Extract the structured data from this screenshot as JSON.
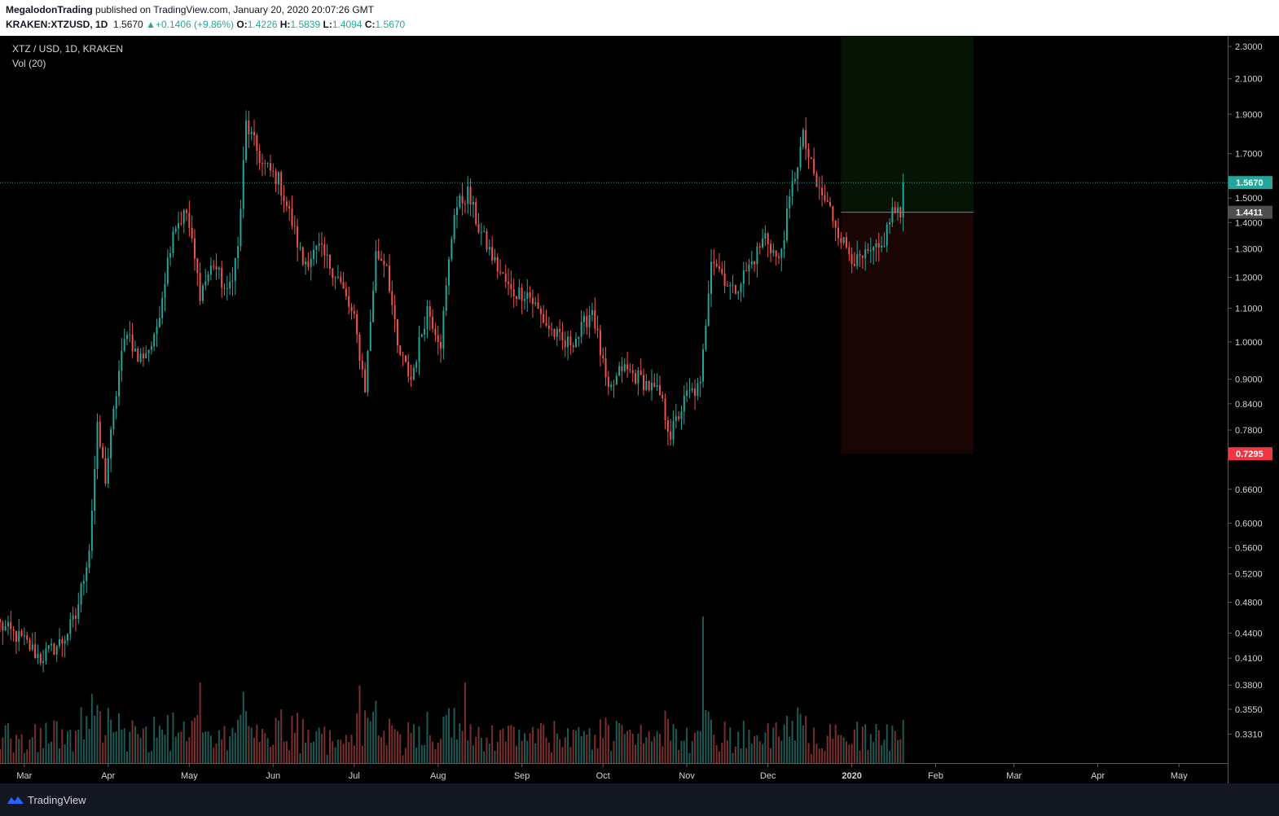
{
  "header": {
    "author": "MegalodonTrading",
    "published_text": "published on TradingView.com, January 20, 2020 20:07:26 GMT",
    "symbol": "KRAKEN:XTZUSD, 1D",
    "last": "1.5670",
    "change": "+0.1406 (+9.86%)",
    "o_label": "O:",
    "o": "1.4226",
    "h_label": "H:",
    "h": "1.5839",
    "l_label": "L:",
    "l": "1.4094",
    "c_label": "C:",
    "c": "1.5670"
  },
  "legend": {
    "title": "XTZ / USD, 1D, KRAKEN",
    "indicator": "Vol (20)"
  },
  "footer": {
    "brand": "TradingView"
  },
  "colors": {
    "background": "#000000",
    "up": "#26a69a",
    "down": "#ef5350",
    "vol_up": "#1d5a55",
    "vol_down": "#7a2e2e",
    "price_line": "#26a69a",
    "target_zone": "#051405",
    "stop_zone": "#1a0505",
    "entry_label": "#4e4e4e",
    "stop_label": "#f23645"
  },
  "chart_data": {
    "type": "candlestick",
    "y_scale": "log",
    "ylim": [
      0.305,
      2.37
    ],
    "y_ticks": [
      "2.3000",
      "2.1000",
      "1.9000",
      "1.7000",
      "1.5000",
      "1.4000",
      "1.3000",
      "1.2000",
      "1.1000",
      "1.0000",
      "0.9000",
      "0.8400",
      "0.7800",
      "0.6600",
      "0.6000",
      "0.5600",
      "0.5200",
      "0.4800",
      "0.4400",
      "0.4100",
      "0.3800",
      "0.3550",
      "0.3310"
    ],
    "x_labels": [
      "Mar",
      "Apr",
      "May",
      "Jun",
      "Jul",
      "Aug",
      "Sep",
      "Oct",
      "Nov",
      "Dec",
      "2020",
      "Feb",
      "Mar",
      "Apr",
      "May"
    ],
    "x_range": [
      "2019-02-20",
      "2020-05-19"
    ],
    "last_date": "2020-01-20",
    "last_price": 1.567,
    "last_price_label": "1.5670",
    "position": {
      "entry": 1.4411,
      "entry_label": "1.4411",
      "stop": 0.7295,
      "stop_label": "0.7295",
      "target": 2.37,
      "start_date": "2019-12-28",
      "end_date": "2020-02-15"
    },
    "price_path": [
      [
        "2019-02-20",
        0.45
      ],
      [
        "2019-03-01",
        0.43
      ],
      [
        "2019-03-07",
        0.41
      ],
      [
        "2019-03-15",
        0.43
      ],
      [
        "2019-03-20",
        0.46
      ],
      [
        "2019-03-25",
        0.56
      ],
      [
        "2019-03-28",
        0.78
      ],
      [
        "2019-03-31",
        0.68
      ],
      [
        "2019-04-05",
        0.92
      ],
      [
        "2019-04-08",
        1.04
      ],
      [
        "2019-04-12",
        0.95
      ],
      [
        "2019-04-18",
        1.0
      ],
      [
        "2019-04-22",
        1.2
      ],
      [
        "2019-04-25",
        1.38
      ],
      [
        "2019-04-30",
        1.44
      ],
      [
        "2019-05-05",
        1.15
      ],
      [
        "2019-05-10",
        1.25
      ],
      [
        "2019-05-15",
        1.14
      ],
      [
        "2019-05-19",
        1.3
      ],
      [
        "2019-05-22",
        1.85
      ],
      [
        "2019-05-28",
        1.65
      ],
      [
        "2019-06-03",
        1.58
      ],
      [
        "2019-06-08",
        1.4
      ],
      [
        "2019-06-12",
        1.25
      ],
      [
        "2019-06-18",
        1.3
      ],
      [
        "2019-06-25",
        1.2
      ],
      [
        "2019-07-01",
        1.06
      ],
      [
        "2019-07-05",
        0.88
      ],
      [
        "2019-07-09",
        1.28
      ],
      [
        "2019-07-13",
        1.25
      ],
      [
        "2019-07-17",
        0.98
      ],
      [
        "2019-07-22",
        0.9
      ],
      [
        "2019-07-28",
        1.1
      ],
      [
        "2019-08-02",
        1.0
      ],
      [
        "2019-08-07",
        1.45
      ],
      [
        "2019-08-12",
        1.52
      ],
      [
        "2019-08-16",
        1.38
      ],
      [
        "2019-08-22",
        1.25
      ],
      [
        "2019-08-28",
        1.15
      ],
      [
        "2019-09-03",
        1.15
      ],
      [
        "2019-09-10",
        1.05
      ],
      [
        "2019-09-17",
        0.99
      ],
      [
        "2019-09-22",
        1.02
      ],
      [
        "2019-09-27",
        1.1
      ],
      [
        "2019-10-03",
        0.86
      ],
      [
        "2019-10-08",
        0.93
      ],
      [
        "2019-10-15",
        0.9
      ],
      [
        "2019-10-22",
        0.86
      ],
      [
        "2019-10-26",
        0.77
      ],
      [
        "2019-11-01",
        0.86
      ],
      [
        "2019-11-06",
        0.88
      ],
      [
        "2019-11-10",
        1.28
      ],
      [
        "2019-11-18",
        1.15
      ],
      [
        "2019-11-25",
        1.25
      ],
      [
        "2019-11-30",
        1.35
      ],
      [
        "2019-12-05",
        1.25
      ],
      [
        "2019-12-10",
        1.55
      ],
      [
        "2019-12-14",
        1.78
      ],
      [
        "2019-12-19",
        1.55
      ],
      [
        "2019-12-24",
        1.45
      ],
      [
        "2019-12-29",
        1.32
      ],
      [
        "2020-01-03",
        1.25
      ],
      [
        "2020-01-08",
        1.28
      ],
      [
        "2020-01-12",
        1.3
      ],
      [
        "2020-01-16",
        1.45
      ],
      [
        "2020-01-19",
        1.4226
      ],
      [
        "2020-01-20",
        1.567
      ]
    ],
    "volume_peaks": [
      [
        "2019-03-22",
        0.38
      ],
      [
        "2019-05-05",
        0.55
      ],
      [
        "2019-07-03",
        0.53
      ],
      [
        "2019-08-11",
        0.55
      ],
      [
        "2019-11-07",
        1.0
      ],
      [
        "2019-12-12",
        0.38
      ],
      [
        "2020-01-17",
        0.22
      ]
    ]
  }
}
